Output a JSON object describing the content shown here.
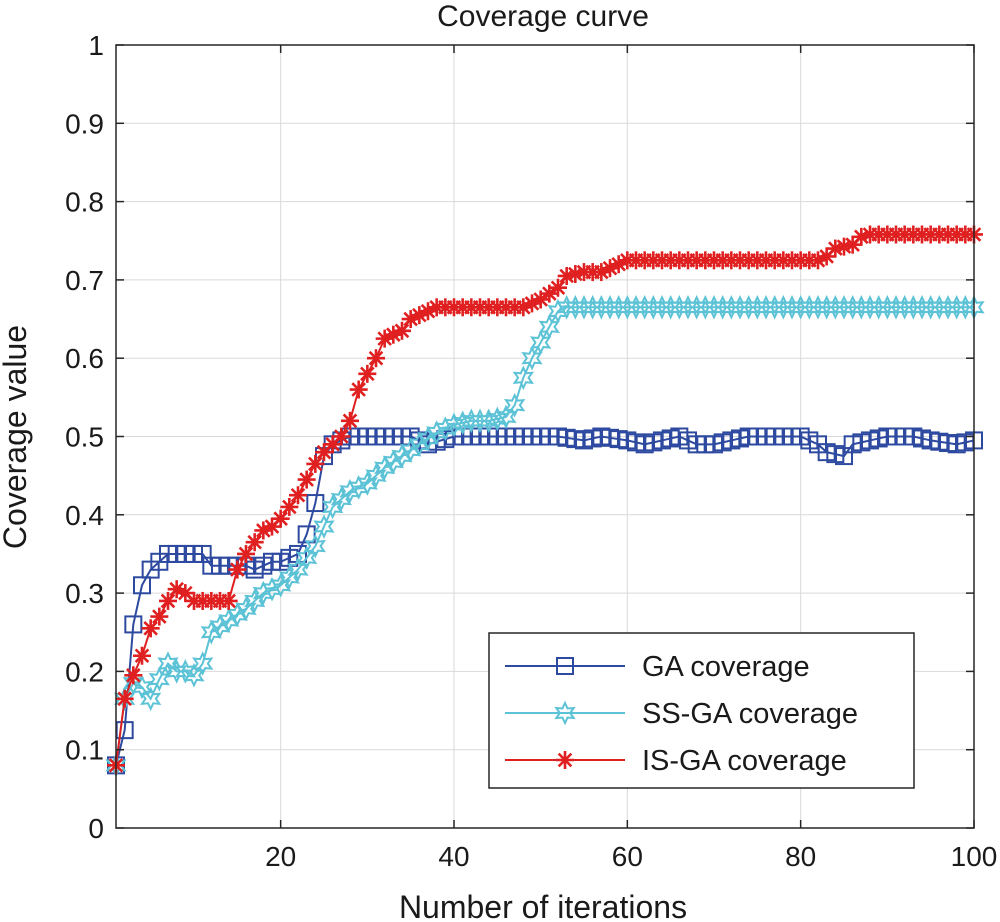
{
  "chart_data": {
    "type": "line",
    "title": "Coverage curve",
    "xlabel": "Number of iterations",
    "ylabel": "Coverage value",
    "xlim": [
      1,
      100
    ],
    "ylim": [
      0,
      1
    ],
    "x_ticks": [
      20,
      40,
      60,
      80,
      100
    ],
    "y_ticks": [
      0,
      0.1,
      0.2,
      0.3,
      0.4,
      0.5,
      0.6,
      0.7,
      0.8,
      0.9,
      1
    ],
    "x_tick_labels": [
      "20",
      "40",
      "60",
      "80",
      "100"
    ],
    "y_tick_labels": [
      "0",
      "0.1",
      "0.2",
      "0.3",
      "0.4",
      "0.5",
      "0.6",
      "0.7",
      "0.8",
      "0.9",
      "1"
    ],
    "grid": true,
    "legend_position": "bottom-right",
    "series": [
      {
        "name": "GA coverage",
        "color": "#2e4aa0",
        "marker": "square",
        "points": [
          [
            1,
            0.08
          ],
          [
            2,
            0.125
          ],
          [
            3,
            0.26
          ],
          [
            4,
            0.31
          ],
          [
            5,
            0.33
          ],
          [
            6,
            0.34
          ],
          [
            7,
            0.35
          ],
          [
            8,
            0.35
          ],
          [
            9,
            0.35
          ],
          [
            10,
            0.35
          ],
          [
            11,
            0.35
          ],
          [
            12,
            0.335
          ],
          [
            13,
            0.335
          ],
          [
            14,
            0.335
          ],
          [
            15,
            0.335
          ],
          [
            16,
            0.335
          ],
          [
            17,
            0.33
          ],
          [
            18,
            0.335
          ],
          [
            19,
            0.34
          ],
          [
            20,
            0.34
          ],
          [
            21,
            0.345
          ],
          [
            22,
            0.35
          ],
          [
            23,
            0.375
          ],
          [
            24,
            0.415
          ],
          [
            25,
            0.475
          ],
          [
            26,
            0.49
          ],
          [
            27,
            0.495
          ],
          [
            28,
            0.5
          ],
          [
            30,
            0.5
          ],
          [
            33,
            0.5
          ],
          [
            35,
            0.5
          ],
          [
            37,
            0.49
          ],
          [
            40,
            0.5
          ],
          [
            45,
            0.5
          ],
          [
            50,
            0.5
          ],
          [
            52,
            0.5
          ],
          [
            55,
            0.495
          ],
          [
            57,
            0.5
          ],
          [
            60,
            0.495
          ],
          [
            62,
            0.49
          ],
          [
            64,
            0.495
          ],
          [
            66,
            0.5
          ],
          [
            68,
            0.49
          ],
          [
            70,
            0.49
          ],
          [
            72,
            0.495
          ],
          [
            74,
            0.5
          ],
          [
            76,
            0.5
          ],
          [
            78,
            0.5
          ],
          [
            80,
            0.5
          ],
          [
            82,
            0.49
          ],
          [
            83,
            0.48
          ],
          [
            85,
            0.475
          ],
          [
            86,
            0.49
          ],
          [
            88,
            0.495
          ],
          [
            90,
            0.5
          ],
          [
            93,
            0.5
          ],
          [
            95,
            0.495
          ],
          [
            98,
            0.49
          ],
          [
            100,
            0.495
          ]
        ]
      },
      {
        "name": "SS-GA coverage",
        "color": "#5cc2d6",
        "marker": "star6",
        "points": [
          [
            1,
            0.08
          ],
          [
            2,
            0.165
          ],
          [
            3,
            0.185
          ],
          [
            4,
            0.18
          ],
          [
            5,
            0.165
          ],
          [
            6,
            0.19
          ],
          [
            7,
            0.21
          ],
          [
            8,
            0.2
          ],
          [
            9,
            0.2
          ],
          [
            10,
            0.195
          ],
          [
            11,
            0.21
          ],
          [
            12,
            0.25
          ],
          [
            14,
            0.265
          ],
          [
            16,
            0.28
          ],
          [
            18,
            0.3
          ],
          [
            20,
            0.31
          ],
          [
            22,
            0.33
          ],
          [
            24,
            0.36
          ],
          [
            25,
            0.385
          ],
          [
            26,
            0.41
          ],
          [
            28,
            0.43
          ],
          [
            30,
            0.44
          ],
          [
            32,
            0.46
          ],
          [
            34,
            0.475
          ],
          [
            36,
            0.49
          ],
          [
            38,
            0.505
          ],
          [
            40,
            0.515
          ],
          [
            42,
            0.52
          ],
          [
            44,
            0.52
          ],
          [
            46,
            0.525
          ],
          [
            47,
            0.54
          ],
          [
            48,
            0.575
          ],
          [
            49,
            0.6
          ],
          [
            50,
            0.62
          ],
          [
            51,
            0.64
          ],
          [
            52,
            0.66
          ],
          [
            53,
            0.665
          ],
          [
            55,
            0.665
          ],
          [
            60,
            0.665
          ],
          [
            70,
            0.665
          ],
          [
            80,
            0.665
          ],
          [
            90,
            0.665
          ],
          [
            100,
            0.665
          ]
        ]
      },
      {
        "name": "IS-GA coverage",
        "color": "#e02020",
        "marker": "asterisk",
        "points": [
          [
            1,
            0.08
          ],
          [
            2,
            0.165
          ],
          [
            3,
            0.195
          ],
          [
            4,
            0.22
          ],
          [
            5,
            0.255
          ],
          [
            6,
            0.27
          ],
          [
            7,
            0.29
          ],
          [
            8,
            0.305
          ],
          [
            9,
            0.3
          ],
          [
            10,
            0.29
          ],
          [
            11,
            0.29
          ],
          [
            12,
            0.29
          ],
          [
            13,
            0.29
          ],
          [
            14,
            0.29
          ],
          [
            15,
            0.33
          ],
          [
            16,
            0.35
          ],
          [
            17,
            0.365
          ],
          [
            18,
            0.38
          ],
          [
            19,
            0.385
          ],
          [
            20,
            0.395
          ],
          [
            21,
            0.41
          ],
          [
            22,
            0.425
          ],
          [
            23,
            0.445
          ],
          [
            24,
            0.465
          ],
          [
            25,
            0.48
          ],
          [
            26,
            0.49
          ],
          [
            27,
            0.5
          ],
          [
            28,
            0.52
          ],
          [
            29,
            0.56
          ],
          [
            30,
            0.58
          ],
          [
            31,
            0.6
          ],
          [
            32,
            0.625
          ],
          [
            33,
            0.63
          ],
          [
            34,
            0.635
          ],
          [
            35,
            0.65
          ],
          [
            36,
            0.655
          ],
          [
            37,
            0.66
          ],
          [
            38,
            0.665
          ],
          [
            40,
            0.665
          ],
          [
            45,
            0.665
          ],
          [
            48,
            0.665
          ],
          [
            50,
            0.675
          ],
          [
            52,
            0.69
          ],
          [
            53,
            0.705
          ],
          [
            55,
            0.71
          ],
          [
            57,
            0.71
          ],
          [
            58,
            0.715
          ],
          [
            60,
            0.725
          ],
          [
            65,
            0.725
          ],
          [
            70,
            0.725
          ],
          [
            75,
            0.725
          ],
          [
            80,
            0.725
          ],
          [
            82,
            0.725
          ],
          [
            83,
            0.73
          ],
          [
            84,
            0.74
          ],
          [
            86,
            0.745
          ],
          [
            87,
            0.755
          ],
          [
            88,
            0.758
          ],
          [
            90,
            0.758
          ],
          [
            95,
            0.758
          ],
          [
            100,
            0.758
          ]
        ]
      }
    ]
  }
}
